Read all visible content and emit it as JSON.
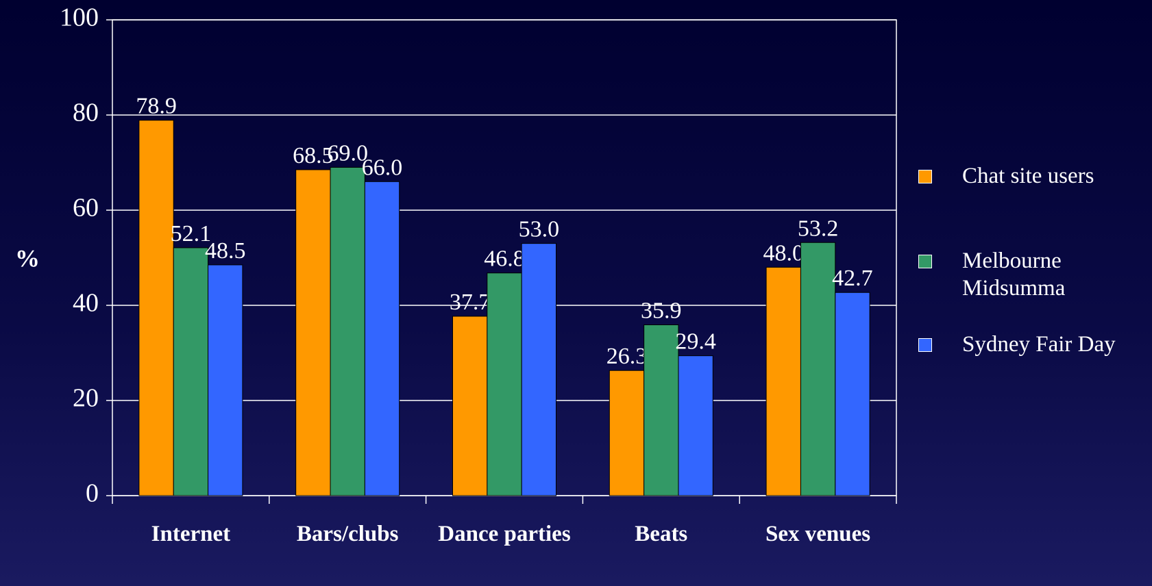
{
  "chart_data": {
    "type": "bar",
    "y_label": "%",
    "categories": [
      "Internet",
      "Bars/clubs",
      "Dance parties",
      "Beats",
      "Sex venues"
    ],
    "series": [
      {
        "name": "Chat site users",
        "color": "#ff9900",
        "values": [
          78.9,
          68.5,
          37.7,
          26.3,
          48.0
        ],
        "value_labels": [
          "78.9",
          "68.5",
          "37.7",
          "26.3",
          "48.0"
        ]
      },
      {
        "name": "Melbourne Midsumma",
        "color": "#339966",
        "values": [
          52.1,
          69.0,
          46.8,
          35.9,
          53.2
        ],
        "value_labels": [
          "52.1",
          "69.0",
          "46.8",
          "35.9",
          "53.2"
        ]
      },
      {
        "name": "Sydney Fair Day",
        "color": "#3366ff",
        "values": [
          48.5,
          66.0,
          53.0,
          29.4,
          42.7
        ],
        "value_labels": [
          "48.5",
          "66.0",
          "53.0",
          "29.4",
          "42.7"
        ]
      }
    ],
    "ylim": [
      0,
      100
    ],
    "yticks": [
      0,
      20,
      40,
      60,
      80,
      100
    ],
    "grid": true,
    "legend": "right"
  }
}
